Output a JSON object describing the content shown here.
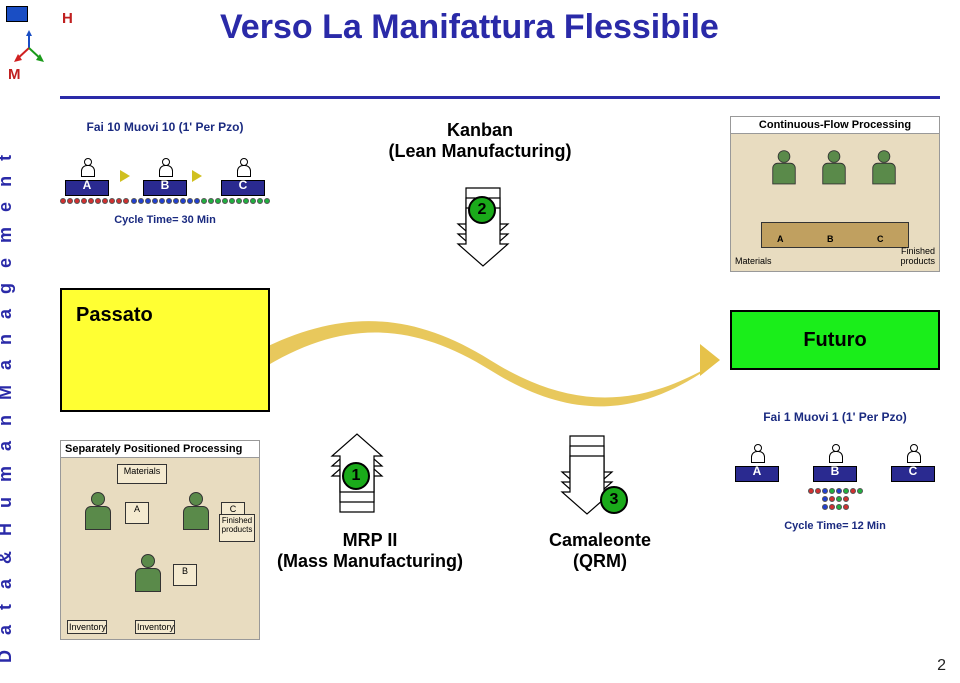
{
  "header": {
    "title": "Verso La Manifattura Flessibile",
    "h_letter": "H",
    "m_letter": "M"
  },
  "sidebar_text": "D a t a   &   H u m a n   M a n a g e m e n t",
  "page_number": "2",
  "batch_top": {
    "caption": "Fai 10 Muovi 10 (1' Per Pzo)",
    "cycle": "Cycle Time= 30 Min",
    "stations": [
      "A",
      "B",
      "C"
    ],
    "part_colors": [
      "#d03030",
      "#2040d0",
      "#20b040"
    ]
  },
  "passato": "Passato",
  "futuro": "Futuro",
  "batch_bot": {
    "caption": "Fai 1 Muovi 1 (1' Per Pzo)",
    "cycle": "Cycle Time= 12 Min",
    "stations": [
      "A",
      "B",
      "C"
    ]
  },
  "kanban": {
    "title_l1": "Kanban",
    "title_l2": "(Lean Manufacturing)",
    "badge": "2"
  },
  "mrp": {
    "title_l1": "MRP II",
    "title_l2": "(Mass Manufacturing)",
    "badge": "1"
  },
  "camaleonte": {
    "title_l1": "Camaleonte",
    "title_l2": "(QRM)",
    "badge": "3"
  },
  "sep_img": {
    "title": "Separately Positioned Processing",
    "labels": {
      "inventory": "Inventory",
      "materials": "Materials",
      "finished": "Finished products",
      "a": "A",
      "b": "B",
      "c": "C"
    }
  },
  "cf_img": {
    "title": "Continuous-Flow Processing",
    "labels": {
      "materials": "Materials",
      "finished": "Finished products",
      "a": "A",
      "b": "B",
      "c": "C"
    }
  },
  "colors": {
    "title": "#2a2aa8",
    "passato_bg": "#ffff33",
    "futuro_bg": "#1aee1a",
    "badge_bg": "#1aaa1a",
    "wave": "#e6c24a",
    "bench": "#2a2a90"
  }
}
